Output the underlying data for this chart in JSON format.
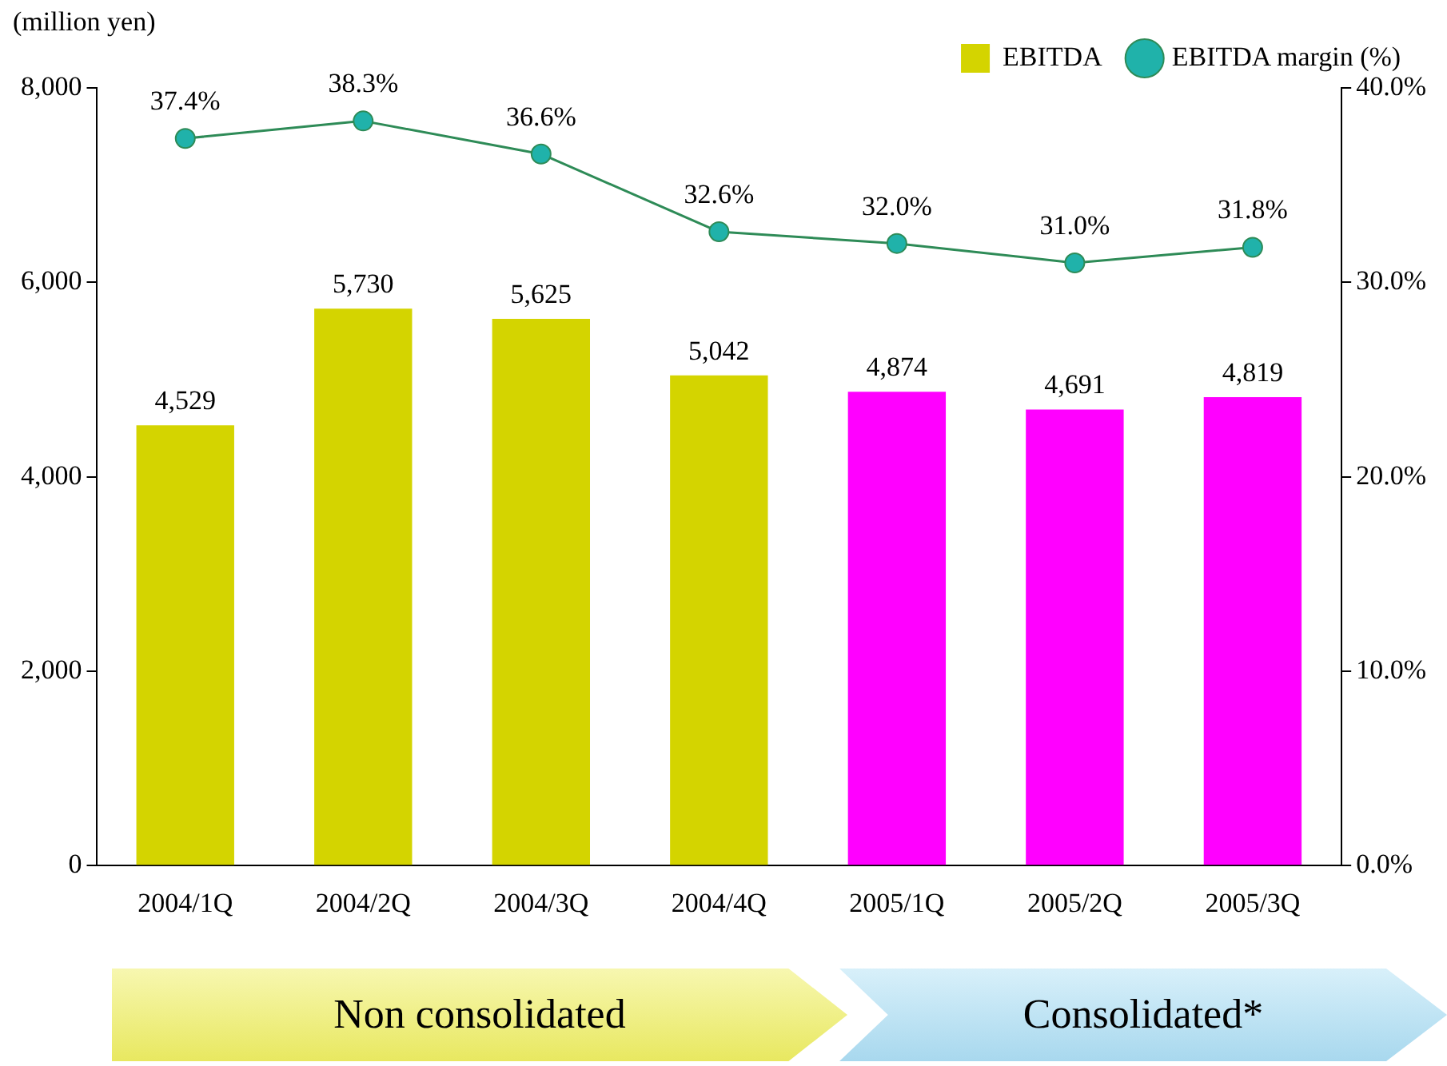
{
  "chart_data": {
    "type": "bar",
    "ylabel": "(million yen)",
    "categories": [
      "2004/1Q",
      "2004/2Q",
      "2004/3Q",
      "2004/4Q",
      "2005/1Q",
      "2005/2Q",
      "2005/3Q"
    ],
    "series": [
      {
        "name": "EBITDA",
        "colors": [
          "#d4d400",
          "#d4d400",
          "#d4d400",
          "#d4d400",
          "#ff00ff",
          "#ff00ff",
          "#ff00ff"
        ],
        "values": [
          4529,
          5730,
          5625,
          5042,
          4874,
          4691,
          4819
        ],
        "value_labels": [
          "4,529",
          "5,730",
          "5,625",
          "5,042",
          "4,874",
          "4,691",
          "4,819"
        ]
      },
      {
        "name": "EBITDA margin (%)",
        "type": "line",
        "axis": "y2",
        "color": "#2e8b57",
        "values": [
          37.4,
          38.3,
          36.6,
          32.6,
          32.0,
          31.0,
          31.8
        ],
        "value_labels": [
          "37.4%",
          "38.3%",
          "36.6%",
          "32.6%",
          "32.0%",
          "31.0%",
          "31.8%"
        ]
      }
    ],
    "ylim": [
      0,
      8000
    ],
    "yticks": [
      0,
      {
        "value": 2000,
        "label": "2,000"
      },
      {
        "value": 4000,
        "label": "4,000"
      },
      {
        "value": 6000,
        "label": "6,000"
      },
      {
        "value": 8000,
        "label": "8,000"
      }
    ],
    "y2lim": [
      0,
      40
    ],
    "y2ticks": [
      {
        "value": 0,
        "label": "0.0%"
      },
      {
        "value": 10,
        "label": "10.0%"
      },
      {
        "value": 20,
        "label": "20.0%"
      },
      {
        "value": 30,
        "label": "30.0%"
      },
      {
        "value": 40,
        "label": "40.0%"
      }
    ],
    "marker": "circle",
    "grid": false,
    "legend": "top right",
    "annotations": [
      "Non consolidated",
      "Consolidated*"
    ]
  }
}
